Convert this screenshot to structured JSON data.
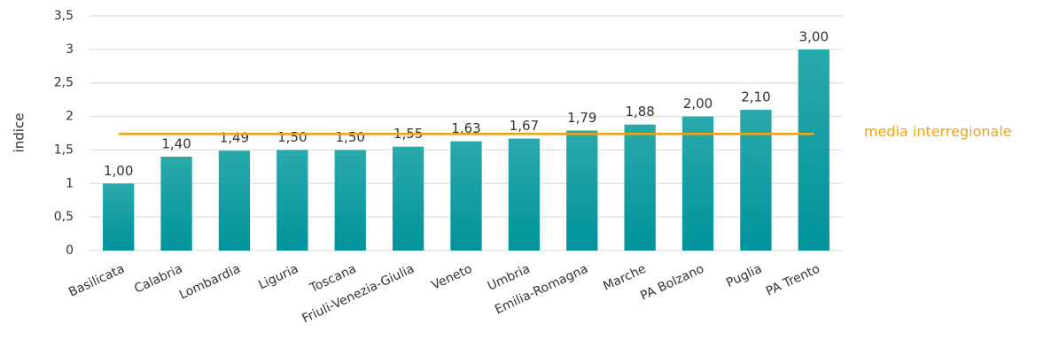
{
  "chart_data": {
    "type": "bar",
    "y_label": "indice",
    "categories": [
      "Basilicata",
      "Calabria",
      "Lombardia",
      "Liguria",
      "Toscana",
      "Friuli-Venezia-Giulia",
      "Veneto",
      "Umbria",
      "Emilia-Romagna",
      "Marche",
      "PA Bolzano",
      "Puglia",
      "PA Trento"
    ],
    "values": [
      1.0,
      1.4,
      1.49,
      1.5,
      1.5,
      1.55,
      1.63,
      1.67,
      1.79,
      1.88,
      2.0,
      2.1,
      3.0
    ],
    "value_labels": [
      "1,00",
      "1,40",
      "1,49",
      "1,50",
      "1,50",
      "1,55",
      "1,63",
      "1,67",
      "1,79",
      "1,88",
      "2,00",
      "2,10",
      "3,00"
    ],
    "color": "#0e9ca0",
    "reference_line": {
      "name": "media interregionale",
      "value": 1.74,
      "color": "#f2a30f"
    },
    "ylim": [
      0,
      3.5
    ],
    "yticks": [
      0,
      {
        "value": 0.5,
        "label": "0,5"
      },
      1,
      {
        "value": 1.5,
        "label": "1,5"
      },
      2,
      {
        "value": 2.5,
        "label": "2,5"
      },
      3,
      {
        "value": 3.5,
        "label": "3,5"
      }
    ],
    "grid": true
  }
}
